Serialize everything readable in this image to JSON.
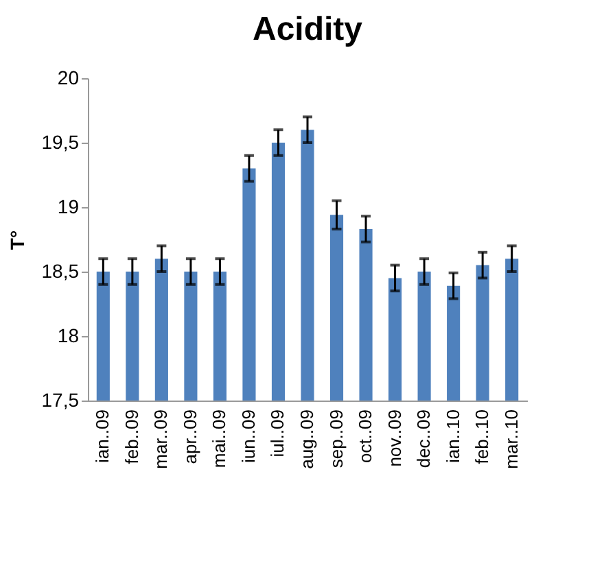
{
  "chart_data": {
    "type": "bar",
    "title": "Acidity",
    "ylabel": "T°",
    "categories": [
      "ian..09",
      "feb..09",
      "mar..09",
      "apr..09",
      "mai..09",
      "iun..09",
      "iul..09",
      "aug..09",
      "sep..09",
      "oct..09",
      "nov..09",
      "dec..09",
      "ian..10",
      "feb..10",
      "mar..10"
    ],
    "values": [
      18.5,
      18.5,
      18.6,
      18.5,
      18.5,
      19.3,
      19.5,
      19.6,
      18.94,
      18.83,
      18.45,
      18.5,
      18.39,
      18.55,
      18.6
    ],
    "errors": [
      0.1,
      0.1,
      0.1,
      0.1,
      0.1,
      0.1,
      0.1,
      0.1,
      0.11,
      0.1,
      0.1,
      0.1,
      0.1,
      0.1,
      0.1
    ],
    "color": "#4f81bd",
    "ylim": [
      17.5,
      20
    ],
    "yticks": [
      {
        "value": 17.5,
        "label": "17,5"
      },
      18,
      {
        "value": 18.5,
        "label": "18,5"
      },
      19,
      {
        "value": 19.5,
        "label": "19,5"
      },
      20
    ],
    "grid": false
  }
}
